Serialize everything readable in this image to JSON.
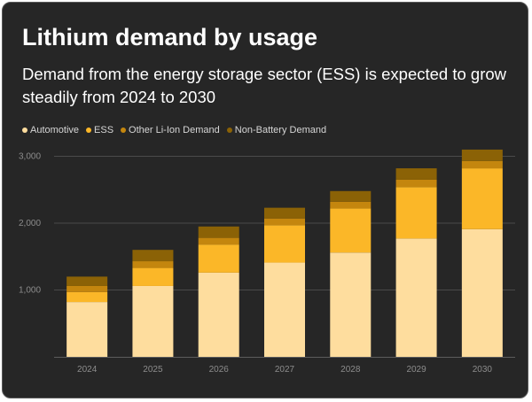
{
  "header": {
    "title": "Lithium demand by usage",
    "subtitle": "Demand from the energy storage sector (ESS) is expected to grow steadily from 2024 to 2030"
  },
  "colors": {
    "Automotive": "#fedd9e",
    "ESS": "#fbb728",
    "Other Li-Ion Demand": "#c4860e",
    "Non-Battery Demand": "#8b6206",
    "grid": "#4a4a4a",
    "background": "#262626"
  },
  "chart_data": {
    "type": "bar",
    "stacked": true,
    "categories": [
      "2024",
      "2025",
      "2026",
      "2027",
      "2028",
      "2029",
      "2030"
    ],
    "series": [
      {
        "name": "Automotive",
        "values": [
          820,
          1060,
          1260,
          1410,
          1560,
          1770,
          1910
        ]
      },
      {
        "name": "ESS",
        "values": [
          150,
          270,
          420,
          560,
          660,
          770,
          910
        ]
      },
      {
        "name": "Other Li-Ion Demand",
        "values": [
          90,
          100,
          100,
          100,
          100,
          110,
          110
        ]
      },
      {
        "name": "Non-Battery Demand",
        "values": [
          140,
          170,
          170,
          160,
          160,
          170,
          170
        ]
      }
    ],
    "yticks": [
      1000,
      2000,
      3000
    ],
    "ytick_labels": [
      "1,000",
      "2,000",
      "3,000"
    ],
    "ylim": [
      0,
      3200
    ],
    "grid": true,
    "legend_position": "top-left",
    "xlabel": "",
    "ylabel": ""
  }
}
